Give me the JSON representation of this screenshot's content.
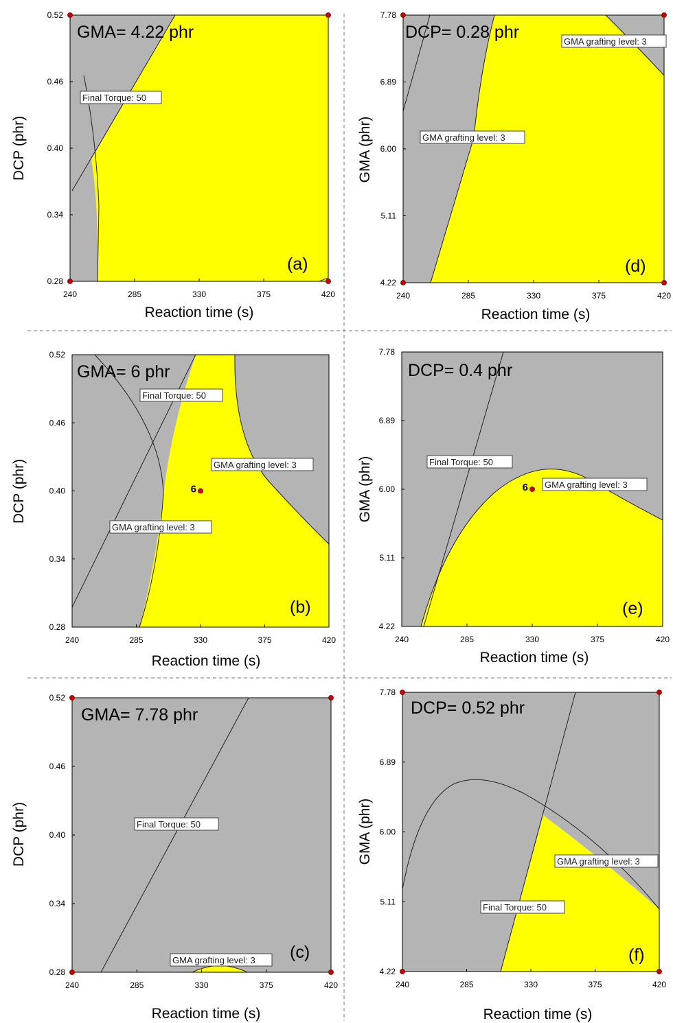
{
  "chart_data": [
    {
      "type": "contour",
      "panel": "(a)",
      "title": "GMA= 4.22 phr",
      "xlabel": "Reaction time (s)",
      "ylabel": "DCP (phr)",
      "xticks": [
        "240",
        "285",
        "330",
        "375",
        "420"
      ],
      "yticks": [
        "0.28",
        "0.34",
        "0.40",
        "0.46",
        "0.52"
      ],
      "xlim": [
        240,
        420
      ],
      "ylim": [
        0.28,
        0.52
      ],
      "colors": {
        "feasible": "#ffff00",
        "infeasible": "#b4b4b4"
      },
      "contour_labels": [
        "Final Torque: 50"
      ],
      "corner_points": true,
      "design_point": null
    },
    {
      "type": "contour",
      "panel": "(b)",
      "title": "GMA= 6 phr",
      "xlabel": "Reaction time (s)",
      "ylabel": "DCP (phr)",
      "xticks": [
        "240",
        "285",
        "330",
        "375",
        "420"
      ],
      "yticks": [
        "0.28",
        "0.34",
        "0.40",
        "0.46",
        "0.52"
      ],
      "xlim": [
        240,
        420
      ],
      "ylim": [
        0.28,
        0.52
      ],
      "colors": {
        "feasible": "#ffff00",
        "infeasible": "#b4b4b4"
      },
      "contour_labels": [
        "Final Torque: 50",
        "GMA grafting level: 3",
        "GMA grafting level: 3"
      ],
      "corner_points": false,
      "design_point": {
        "label": "6",
        "x": 330,
        "y": 0.4
      }
    },
    {
      "type": "contour",
      "panel": "(c)",
      "title": "GMA= 7.78 phr",
      "xlabel": "Reaction time (s)",
      "ylabel": "DCP (phr)",
      "xticks": [
        "240",
        "285",
        "330",
        "375",
        "420"
      ],
      "yticks": [
        "0.28",
        "0.34",
        "0.40",
        "0.46",
        "0.52"
      ],
      "xlim": [
        240,
        420
      ],
      "ylim": [
        0.28,
        0.52
      ],
      "colors": {
        "feasible": "#ffff00",
        "infeasible": "#b4b4b4"
      },
      "contour_labels": [
        "Final Torque: 50",
        "GMA grafting level: 3"
      ],
      "corner_points": true,
      "design_point": null
    },
    {
      "type": "contour",
      "panel": "(d)",
      "title": "DCP= 0.28 phr",
      "xlabel": "Reaction time (s)",
      "ylabel": "GMA (phr)",
      "xticks": [
        "240",
        "285",
        "330",
        "375",
        "420"
      ],
      "yticks": [
        "4.22",
        "5.11",
        "6.00",
        "6.89",
        "7.78"
      ],
      "xlim": [
        240,
        420
      ],
      "ylim": [
        4.22,
        7.78
      ],
      "colors": {
        "feasible": "#ffff00",
        "infeasible": "#b4b4b4"
      },
      "contour_labels": [
        "GMA grafting level: 3",
        "GMA grafting level: 3"
      ],
      "corner_points": true,
      "design_point": null
    },
    {
      "type": "contour",
      "panel": "(e)",
      "title": "DCP= 0.4 phr",
      "xlabel": "Reaction time (s)",
      "ylabel": "GMA (phr)",
      "xticks": [
        "240",
        "285",
        "330",
        "375",
        "420"
      ],
      "yticks": [
        "4.22",
        "5.11",
        "6.00",
        "6.89",
        "7.78"
      ],
      "xlim": [
        240,
        420
      ],
      "ylim": [
        4.22,
        7.78
      ],
      "colors": {
        "feasible": "#ffff00",
        "infeasible": "#b4b4b4"
      },
      "contour_labels": [
        "Final Torque: 50",
        "GMA grafting level: 3"
      ],
      "corner_points": false,
      "design_point": {
        "label": "6",
        "x": 330,
        "y": 6.0
      }
    },
    {
      "type": "contour",
      "panel": "(f)",
      "title": "DCP= 0.52 phr",
      "xlabel": "Reaction time (s)",
      "ylabel": "GMA (phr)",
      "xticks": [
        "240",
        "285",
        "330",
        "375",
        "420"
      ],
      "yticks": [
        "4.22",
        "5.11",
        "6.00",
        "6.89",
        "7.78"
      ],
      "xlim": [
        240,
        420
      ],
      "ylim": [
        4.22,
        7.78
      ],
      "colors": {
        "feasible": "#ffff00",
        "infeasible": "#b4b4b4"
      },
      "contour_labels": [
        "GMA grafting level: 3",
        "Final Torque: 50"
      ],
      "corner_points": true,
      "design_point": null
    }
  ]
}
